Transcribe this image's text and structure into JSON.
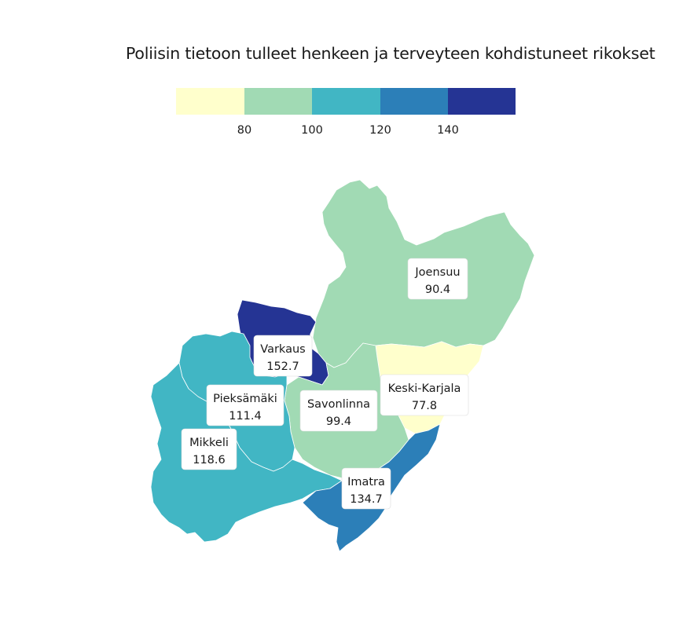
{
  "title": "Poliisin tietoon tulleet henkeen ja terveyteen kohdistuneet rikokset",
  "legend": {
    "colors": [
      "#ffffcc",
      "#a1dab4",
      "#41b6c4",
      "#2c7fb8",
      "#253494"
    ],
    "ticks": [
      "80",
      "100",
      "120",
      "140"
    ]
  },
  "regions": [
    {
      "name": "Joensuu",
      "value": "90.4",
      "color": "#a1dab4"
    },
    {
      "name": "Varkaus",
      "value": "152.7",
      "color": "#253494"
    },
    {
      "name": "Keski-Karjala",
      "value": "77.8",
      "color": "#ffffcc"
    },
    {
      "name": "Pieksämäki",
      "value": "111.4",
      "color": "#41b6c4"
    },
    {
      "name": "Savonlinna",
      "value": "99.4",
      "color": "#a1dab4"
    },
    {
      "name": "Mikkeli",
      "value": "118.6",
      "color": "#41b6c4"
    },
    {
      "name": "Imatra",
      "value": "134.7",
      "color": "#2c7fb8"
    }
  ]
}
